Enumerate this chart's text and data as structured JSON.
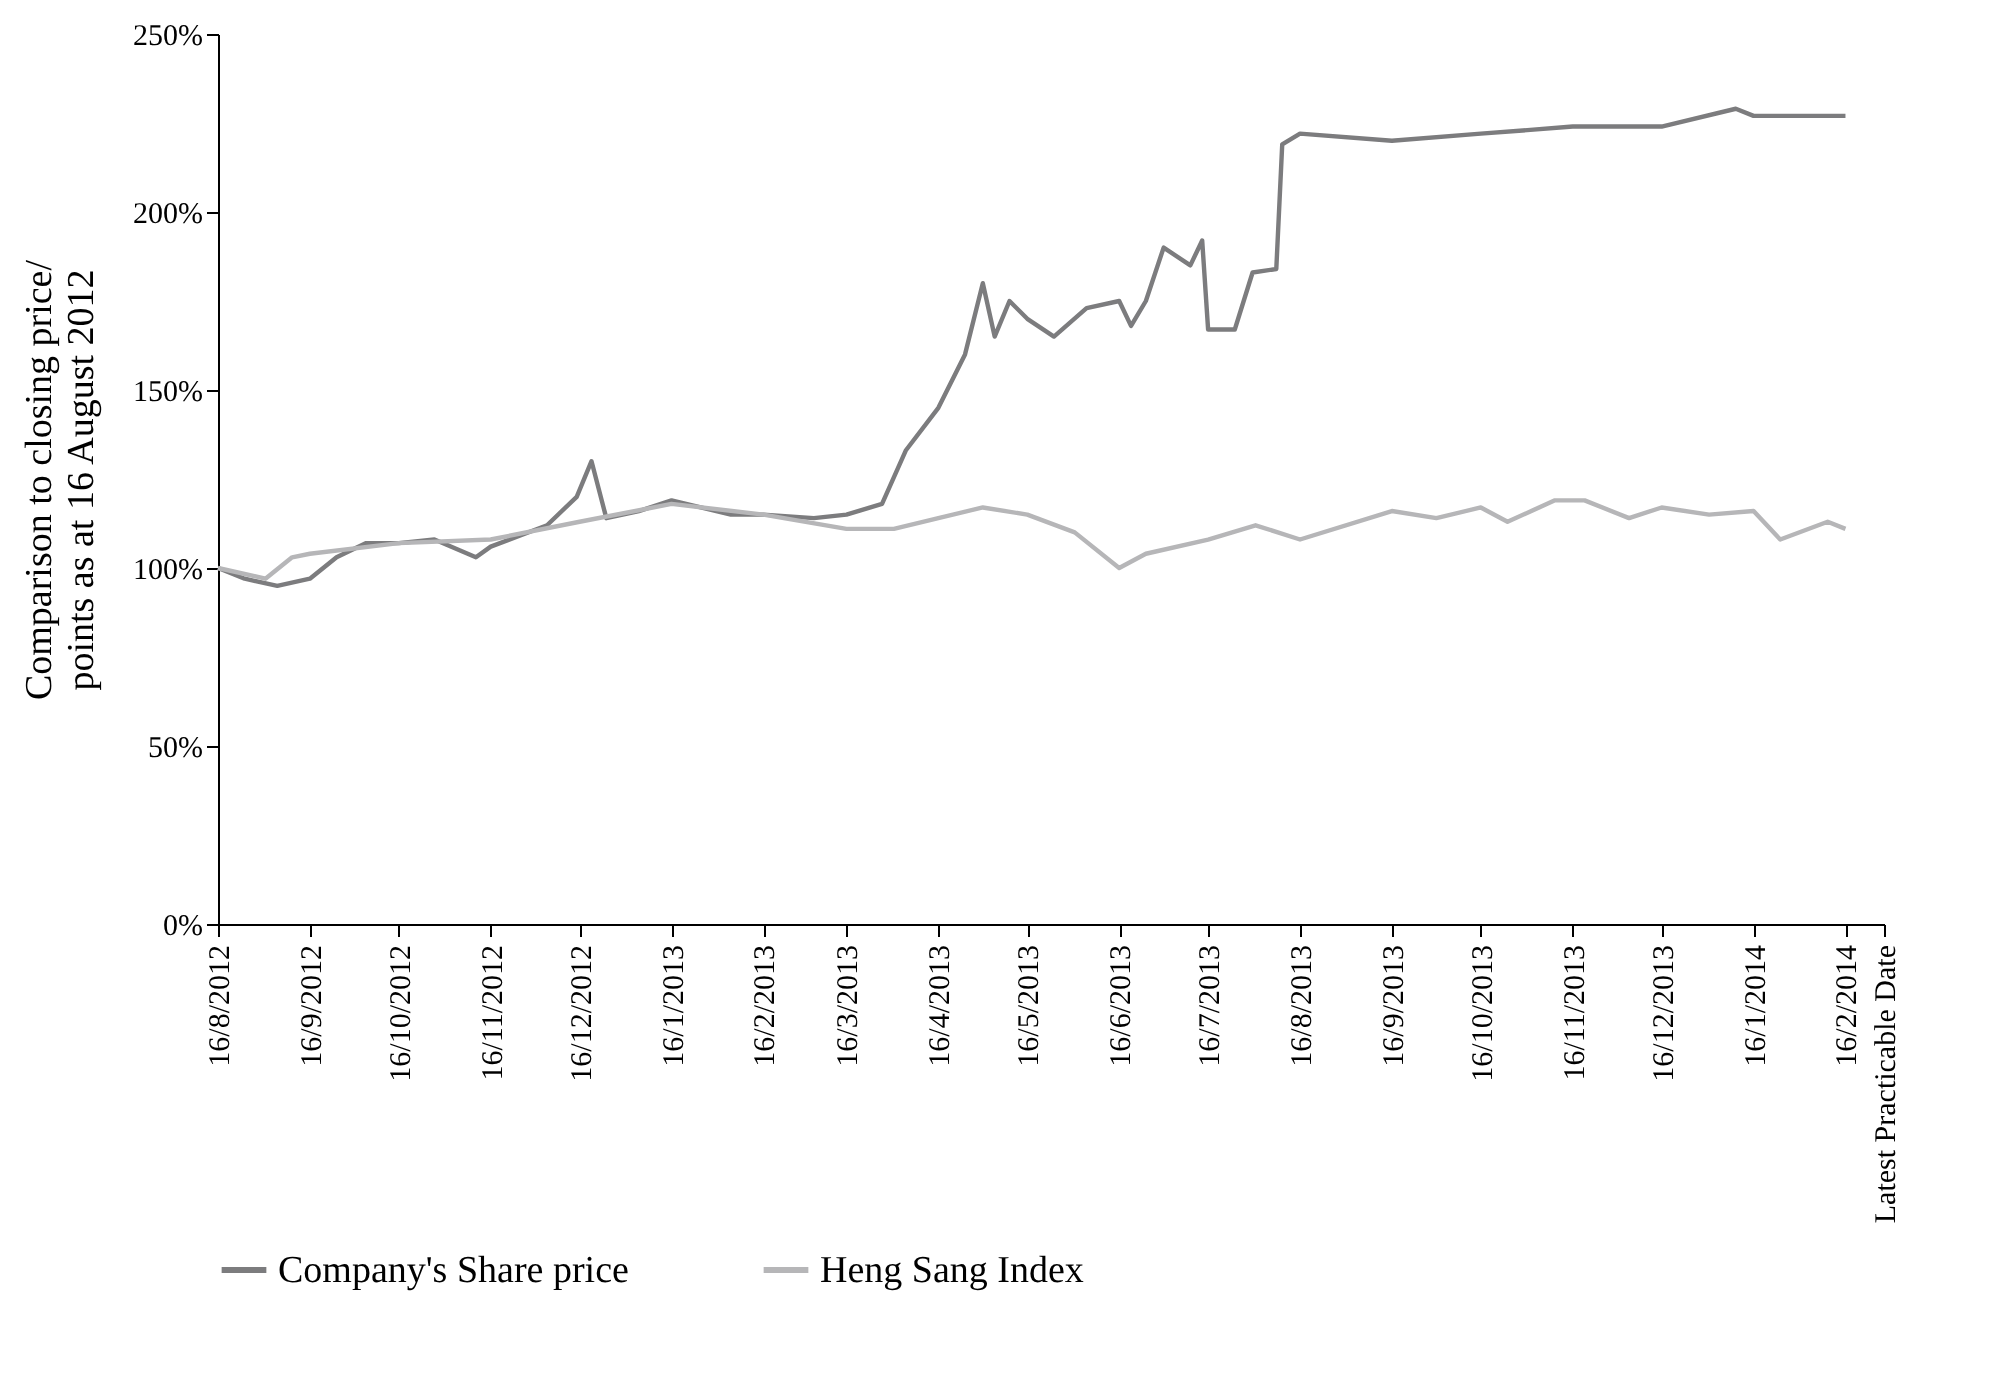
{
  "chart_data": {
    "type": "line",
    "ylabel": "Comparison to closing price/\npoints as at 16 August 2012",
    "xlim": [
      "2012-08-16",
      "2014-03-01"
    ],
    "xticks": [
      {
        "value": "2012-08-16",
        "label": "16/8/2012"
      },
      {
        "value": "2012-09-16",
        "label": "16/9/2012"
      },
      {
        "value": "2012-10-16",
        "label": "16/10/2012"
      },
      {
        "value": "2012-11-16",
        "label": "16/11/2012"
      },
      {
        "value": "2012-12-16",
        "label": "16/12/2012"
      },
      {
        "value": "2013-01-16",
        "label": "16/1/2013"
      },
      {
        "value": "2013-02-16",
        "label": "16/2/2013"
      },
      {
        "value": "2013-03-16",
        "label": "16/3/2013"
      },
      {
        "value": "2013-04-16",
        "label": "16/4/2013"
      },
      {
        "value": "2013-05-16",
        "label": "16/5/2013"
      },
      {
        "value": "2013-06-16",
        "label": "16/6/2013"
      },
      {
        "value": "2013-07-16",
        "label": "16/7/2013"
      },
      {
        "value": "2013-08-16",
        "label": "16/8/2013"
      },
      {
        "value": "2013-09-16",
        "label": "16/9/2013"
      },
      {
        "value": "2013-10-16",
        "label": "16/10/2013"
      },
      {
        "value": "2013-11-16",
        "label": "16/11/2013"
      },
      {
        "value": "2013-12-16",
        "label": "16/12/2013"
      },
      {
        "value": "2014-01-16",
        "label": "16/1/2014"
      },
      {
        "value": "2014-02-16",
        "label": "16/2/2014"
      },
      {
        "value": "2014-03-01",
        "label": "Latest Practicable Date"
      }
    ],
    "ylim": [
      0,
      250
    ],
    "yticks": [
      {
        "value": 0,
        "label": "0%"
      },
      {
        "value": 50,
        "label": "50%"
      },
      {
        "value": 100,
        "label": "100%"
      },
      {
        "value": 150,
        "label": "150%"
      },
      {
        "value": 200,
        "label": "200%"
      },
      {
        "value": 250,
        "label": "250%"
      }
    ],
    "grid": false,
    "legend": "bottom",
    "line_style": "solid",
    "marker": "none",
    "series": [
      {
        "name": "Company's Share price",
        "color": "#7c7c7e",
        "x": [
          "2012-08-16",
          "2012-08-25",
          "2012-09-05",
          "2012-09-16",
          "2012-09-25",
          "2012-10-05",
          "2012-10-16",
          "2012-10-28",
          "2012-11-11",
          "2012-11-16",
          "2012-12-05",
          "2012-12-15",
          "2012-12-20",
          "2012-12-25",
          "2013-01-05",
          "2013-01-16",
          "2013-02-05",
          "2013-02-16",
          "2013-03-05",
          "2013-03-16",
          "2013-03-28",
          "2013-04-05",
          "2013-04-16",
          "2013-04-25",
          "2013-05-01",
          "2013-05-05",
          "2013-05-10",
          "2013-05-16",
          "2013-05-25",
          "2013-06-05",
          "2013-06-16",
          "2013-06-20",
          "2013-06-25",
          "2013-07-01",
          "2013-07-10",
          "2013-07-14",
          "2013-07-16",
          "2013-07-25",
          "2013-07-31",
          "2013-08-08",
          "2013-08-10",
          "2013-08-16",
          "2013-09-16",
          "2013-10-16",
          "2013-11-16",
          "2013-12-16",
          "2014-01-10",
          "2014-01-16",
          "2014-02-16"
        ],
        "values": [
          100,
          97,
          95,
          97,
          103,
          107,
          107,
          108,
          103,
          106,
          112,
          120,
          130,
          114,
          116,
          119,
          115,
          115,
          114,
          115,
          118,
          133,
          145,
          160,
          180,
          165,
          175,
          170,
          165,
          173,
          175,
          168,
          175,
          190,
          185,
          192,
          167,
          167,
          183,
          184,
          219,
          222,
          220,
          222,
          224,
          224,
          229,
          227,
          227
        ]
      },
      {
        "name": "Heng Sang Index",
        "color": "#b6b6b8",
        "x": [
          "2012-08-16",
          "2012-09-01",
          "2012-09-10",
          "2012-09-16",
          "2012-10-16",
          "2012-11-16",
          "2012-12-16",
          "2013-01-16",
          "2013-02-16",
          "2013-03-16",
          "2013-04-01",
          "2013-04-16",
          "2013-05-01",
          "2013-05-16",
          "2013-06-01",
          "2013-06-16",
          "2013-06-25",
          "2013-07-16",
          "2013-08-01",
          "2013-08-16",
          "2013-09-16",
          "2013-10-01",
          "2013-10-16",
          "2013-10-25",
          "2013-11-10",
          "2013-11-20",
          "2013-12-05",
          "2013-12-16",
          "2014-01-01",
          "2014-01-16",
          "2014-01-25",
          "2014-02-10",
          "2014-02-16"
        ],
        "values": [
          100,
          97,
          103,
          104,
          107,
          108,
          113,
          118,
          115,
          111,
          111,
          114,
          117,
          115,
          110,
          100,
          104,
          108,
          112,
          108,
          116,
          114,
          117,
          113,
          119,
          119,
          114,
          117,
          115,
          116,
          108,
          113,
          111
        ]
      }
    ]
  }
}
